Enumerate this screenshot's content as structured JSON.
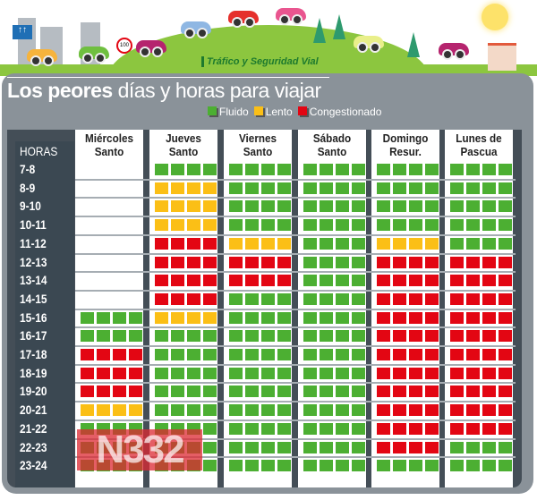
{
  "brand": "Tráfico y Seguridad Vial",
  "title": {
    "bold": "Los peores",
    "rest": " días y horas para viajar"
  },
  "legend": [
    {
      "label": "Fluido",
      "color": "#4caf32"
    },
    {
      "label": "Lento",
      "color": "#fbbf16"
    },
    {
      "label": "Congestionado",
      "color": "#e30613"
    }
  ],
  "hours_label": "HORAS",
  "hours": [
    "7-8",
    "8-9",
    "9-10",
    "10-11",
    "11-12",
    "12-13",
    "13-14",
    "14-15",
    "15-16",
    "16-17",
    "17-18",
    "18-19",
    "19-20",
    "20-21",
    "21-22",
    "22-23",
    "23-24"
  ],
  "days": [
    {
      "name": "Miércoles\nSanto",
      "status": "nnnnnnnnggrrryggg"
    },
    {
      "name": "Jueves\nSanto",
      "status": "gyyyrrrrygggggggg"
    },
    {
      "name": "Viernes\nSanto",
      "status": "ggggyrrgggggggggg"
    },
    {
      "name": "Sábado\nSanto",
      "status": "ggggggggggggggggg"
    },
    {
      "name": "Domingo\nResur.",
      "status": "ggggyrrrrrrrrrrrg"
    },
    {
      "name": "Lunes de\nPascua",
      "status": "gggggrrrrrrrrrrgg"
    }
  ],
  "watermark": "N332",
  "sign_speed": "100"
}
